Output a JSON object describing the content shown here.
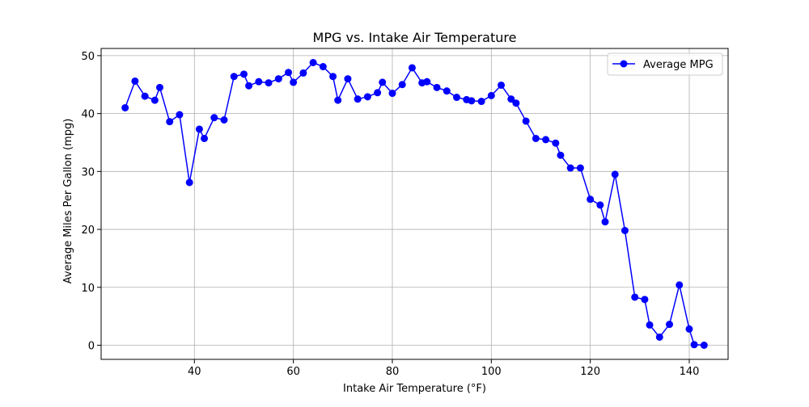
{
  "chart_data": {
    "type": "line",
    "title": "MPG vs. Intake Air Temperature",
    "xlabel": "Intake Air Temperature (°F)",
    "ylabel": "Average Miles Per Gallon (mpg)",
    "xlim": [
      21.15,
      147.85
    ],
    "ylim": [
      -2.44,
      51.24
    ],
    "xticks": [
      40,
      60,
      80,
      100,
      120,
      140
    ],
    "yticks": [
      0,
      10,
      20,
      30,
      40,
      50
    ],
    "grid": true,
    "legend_position": "top-right",
    "series": [
      {
        "name": "Average MPG",
        "color": "#0000ff",
        "marker": "circle",
        "x": [
          26,
          28,
          30,
          32,
          33,
          35,
          37,
          39,
          41,
          42,
          44,
          46,
          48,
          50,
          51,
          53,
          55,
          57,
          59,
          60,
          62,
          64,
          66,
          68,
          69,
          71,
          73,
          75,
          77,
          78,
          80,
          82,
          84,
          86,
          87,
          89,
          91,
          93,
          95,
          96,
          98,
          100,
          102,
          104,
          105,
          107,
          109,
          111,
          113,
          114,
          116,
          118,
          120,
          122,
          123,
          125,
          127,
          129,
          131,
          132,
          134,
          136,
          138,
          140,
          141,
          143
        ],
        "y": [
          41.0,
          45.6,
          43.0,
          42.3,
          44.5,
          38.6,
          39.8,
          28.1,
          37.3,
          35.7,
          39.3,
          38.9,
          46.4,
          46.8,
          44.8,
          45.5,
          45.3,
          46.0,
          47.1,
          45.4,
          47.0,
          48.8,
          48.1,
          46.4,
          42.3,
          46.0,
          42.5,
          42.9,
          43.6,
          45.4,
          43.5,
          45.0,
          47.9,
          45.3,
          45.5,
          44.5,
          43.9,
          42.8,
          42.4,
          42.2,
          42.1,
          43.1,
          44.9,
          42.5,
          41.8,
          38.7,
          35.7,
          35.5,
          34.9,
          32.8,
          30.6,
          30.6,
          25.2,
          24.2,
          21.3,
          29.5,
          19.8,
          8.3,
          7.9,
          3.5,
          1.4,
          3.6,
          10.4,
          2.8,
          0.1,
          0.0
        ]
      }
    ]
  }
}
